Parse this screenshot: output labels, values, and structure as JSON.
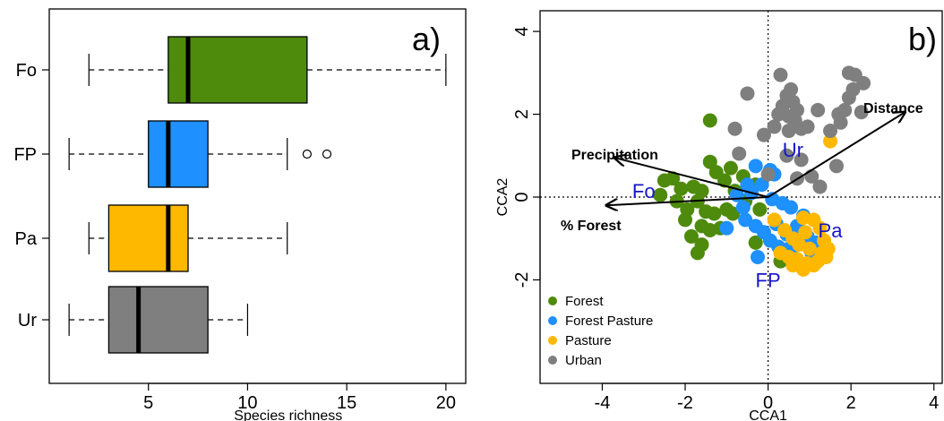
{
  "chart_data": [
    {
      "type": "box",
      "panel_label": "a)",
      "xlabel": "Species richness",
      "ylabel": "",
      "xlim": [
        0,
        21
      ],
      "xticks": [
        5,
        10,
        15,
        20
      ],
      "orientation": "horizontal",
      "grid": false,
      "groups": [
        {
          "name": "Fo",
          "color": "#4e8a0c",
          "whisker_low": 2,
          "q1": 6,
          "median": 7,
          "q3": 13,
          "whisker_high": 20,
          "outliers": []
        },
        {
          "name": "FP",
          "color": "#1e90ff",
          "whisker_low": 1,
          "q1": 5,
          "median": 6,
          "q3": 8,
          "whisker_high": 12,
          "outliers": [
            13,
            14
          ]
        },
        {
          "name": "Pa",
          "color": "#ffb800",
          "whisker_low": 2,
          "q1": 3,
          "median": 6,
          "q3": 7,
          "whisker_high": 12,
          "outliers": []
        },
        {
          "name": "Ur",
          "color": "#7f7f7f",
          "whisker_low": 1,
          "q1": 3,
          "median": 4.5,
          "q3": 8,
          "whisker_high": 10,
          "outliers": []
        }
      ]
    },
    {
      "type": "scatter",
      "panel_label": "b)",
      "xlabel": "CCA1",
      "ylabel": "CCA2",
      "xlim": [
        -5.5,
        4.2
      ],
      "ylim": [
        -4.5,
        4.5
      ],
      "xticks": [
        -4,
        -2,
        0,
        2,
        4
      ],
      "yticks": [
        -2,
        0,
        2,
        4
      ],
      "reference_lines": {
        "x": 0,
        "y": 0,
        "style": "dotted"
      },
      "legend_position": "bottom-left",
      "series": [
        {
          "name": "Forest",
          "color": "#4e8a0c",
          "points": [
            [
              -2.5,
              0.4
            ],
            [
              -2.3,
              0.45
            ],
            [
              -2.1,
              0.2
            ],
            [
              -1.8,
              0.25
            ],
            [
              -1.6,
              0.15
            ],
            [
              -2.2,
              -0.1
            ],
            [
              -1.95,
              -0.3
            ],
            [
              -1.7,
              -0.1
            ],
            [
              -1.5,
              -0.35
            ],
            [
              -1.3,
              -0.4
            ],
            [
              -2.0,
              -0.55
            ],
            [
              -1.6,
              -0.7
            ],
            [
              -1.4,
              -0.8
            ],
            [
              -1.15,
              -0.75
            ],
            [
              -1.0,
              -0.3
            ],
            [
              -0.85,
              -0.4
            ],
            [
              -1.7,
              -1.35
            ],
            [
              -1.6,
              -1.15
            ],
            [
              -1.4,
              0.85
            ],
            [
              -1.25,
              0.6
            ],
            [
              -1.05,
              0.4
            ],
            [
              -0.9,
              0.7
            ],
            [
              -0.8,
              0.15
            ],
            [
              -0.55,
              -0.1
            ],
            [
              -0.6,
              0.5
            ],
            [
              -0.3,
              0.3
            ],
            [
              -0.2,
              -0.3
            ],
            [
              -0.3,
              -1.1
            ],
            [
              0.3,
              -1.55
            ],
            [
              -1.4,
              1.85
            ],
            [
              -2.6,
              0.05
            ],
            [
              -1.85,
              -0.95
            ]
          ]
        },
        {
          "name": "Forest Pasture",
          "color": "#1e90ff",
          "points": [
            [
              -0.3,
              0.75
            ],
            [
              0.05,
              0.65
            ],
            [
              0.15,
              0.55
            ],
            [
              -0.5,
              0.3
            ],
            [
              -0.15,
              0.3
            ],
            [
              0.1,
              -0.05
            ],
            [
              -0.75,
              0.05
            ],
            [
              -0.6,
              -0.25
            ],
            [
              0.35,
              -0.15
            ],
            [
              0.55,
              -0.25
            ],
            [
              -0.55,
              -0.55
            ],
            [
              -0.3,
              -0.7
            ],
            [
              -0.1,
              -0.85
            ],
            [
              0.2,
              -0.65
            ],
            [
              0.05,
              -1.05
            ],
            [
              0.45,
              -0.9
            ],
            [
              0.7,
              -0.7
            ],
            [
              0.5,
              -1.25
            ],
            [
              0.95,
              -0.95
            ],
            [
              1.15,
              -1.1
            ],
            [
              0.6,
              -1.45
            ],
            [
              0.8,
              -1.05
            ],
            [
              -0.25,
              -1.45
            ],
            [
              1.05,
              -1.35
            ],
            [
              0.25,
              -1.2
            ],
            [
              -1.0,
              -0.75
            ],
            [
              -0.4,
              0.1
            ],
            [
              0.85,
              -0.45
            ]
          ]
        },
        {
          "name": "Pasture",
          "color": "#ffb800",
          "points": [
            [
              1.5,
              1.35
            ],
            [
              0.85,
              -0.5
            ],
            [
              1.1,
              -0.55
            ],
            [
              1.25,
              -0.75
            ],
            [
              0.9,
              -0.85
            ],
            [
              0.6,
              -1.0
            ],
            [
              0.75,
              -1.15
            ],
            [
              1.35,
              -1.05
            ],
            [
              0.5,
              -1.45
            ],
            [
              0.7,
              -1.5
            ],
            [
              0.95,
              -1.6
            ],
            [
              1.2,
              -1.55
            ],
            [
              1.45,
              -1.25
            ],
            [
              1.4,
              -1.45
            ],
            [
              1.0,
              -1.25
            ],
            [
              0.3,
              -1.35
            ],
            [
              0.6,
              -1.65
            ],
            [
              0.85,
              -1.75
            ],
            [
              1.1,
              -1.65
            ],
            [
              0.4,
              -0.8
            ],
            [
              1.3,
              -1.35
            ],
            [
              0.15,
              -0.55
            ]
          ]
        },
        {
          "name": "Urban",
          "color": "#7f7f7f",
          "points": [
            [
              0.3,
              2.95
            ],
            [
              0.55,
              2.6
            ],
            [
              0.45,
              2.45
            ],
            [
              0.6,
              2.3
            ],
            [
              0.35,
              2.2
            ],
            [
              0.25,
              2.0
            ],
            [
              0.5,
              1.95
            ],
            [
              0.7,
              2.1
            ],
            [
              0.65,
              1.85
            ],
            [
              0.8,
              1.65
            ],
            [
              0.95,
              1.7
            ],
            [
              0.15,
              1.7
            ],
            [
              -0.1,
              1.5
            ],
            [
              0.5,
              1.6
            ],
            [
              1.2,
              2.1
            ],
            [
              1.7,
              2.0
            ],
            [
              1.85,
              2.1
            ],
            [
              1.75,
              1.8
            ],
            [
              2.05,
              2.6
            ],
            [
              2.1,
              2.95
            ],
            [
              2.3,
              2.75
            ],
            [
              1.95,
              2.4
            ],
            [
              2.25,
              2.05
            ],
            [
              1.5,
              1.6
            ],
            [
              1.65,
              0.75
            ],
            [
              0.8,
              0.9
            ],
            [
              1.25,
              0.25
            ],
            [
              0.7,
              0.45
            ],
            [
              -0.5,
              2.5
            ],
            [
              -0.8,
              1.65
            ],
            [
              -0.7,
              1.05
            ],
            [
              0.0,
              0.55
            ],
            [
              1.95,
              3.0
            ],
            [
              1.05,
              0.5
            ],
            [
              0.45,
              1.0
            ]
          ]
        }
      ],
      "group_labels": [
        {
          "text": "Fo",
          "x": -3.0,
          "y": 0.15
        },
        {
          "text": "FP",
          "x": 0.0,
          "y": -2.0
        },
        {
          "text": "Pa",
          "x": 1.5,
          "y": -0.8
        },
        {
          "text": "Ur",
          "x": 0.6,
          "y": 1.15
        }
      ],
      "arrows": [
        {
          "label": "Precipitation",
          "x": -3.7,
          "y": 0.95
        },
        {
          "label": "% Forest",
          "x": -3.9,
          "y": -0.2
        },
        {
          "label": "Distance",
          "x": 3.3,
          "y": 2.05
        }
      ]
    }
  ]
}
